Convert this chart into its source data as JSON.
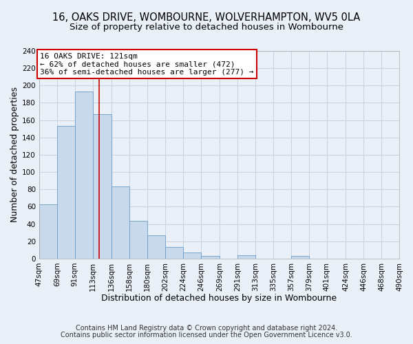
{
  "title": "16, OAKS DRIVE, WOMBOURNE, WOLVERHAMPTON, WV5 0LA",
  "subtitle": "Size of property relative to detached houses in Wombourne",
  "xlabel": "Distribution of detached houses by size in Wombourne",
  "ylabel": "Number of detached properties",
  "footer_line1": "Contains HM Land Registry data © Crown copyright and database right 2024.",
  "footer_line2": "Contains public sector information licensed under the Open Government Licence v3.0.",
  "bin_labels": [
    "47sqm",
    "69sqm",
    "91sqm",
    "113sqm",
    "136sqm",
    "158sqm",
    "180sqm",
    "202sqm",
    "224sqm",
    "246sqm",
    "269sqm",
    "291sqm",
    "313sqm",
    "335sqm",
    "357sqm",
    "379sqm",
    "401sqm",
    "424sqm",
    "446sqm",
    "468sqm",
    "490sqm"
  ],
  "bar_values": [
    63,
    153,
    193,
    167,
    83,
    44,
    27,
    13,
    7,
    3,
    0,
    4,
    0,
    0,
    3,
    0,
    0,
    0,
    0,
    0,
    1
  ],
  "bin_edges": [
    47,
    69,
    91,
    113,
    136,
    158,
    180,
    202,
    224,
    246,
    269,
    291,
    313,
    335,
    357,
    379,
    401,
    424,
    446,
    468,
    490
  ],
  "bar_color": "#c9d9ec",
  "bar_edge_color": "#6b9cc7",
  "grid_color": "#c8d4e3",
  "background_color": "#eaf0f8",
  "plot_bg_color": "#eaf0f8",
  "annotation_text_line1": "16 OAKS DRIVE: 121sqm",
  "annotation_text_line2": "← 62% of detached houses are smaller (472)",
  "annotation_text_line3": "36% of semi-detached houses are larger (277) →",
  "annotation_box_edge": "#cc0000",
  "red_line_x": 121,
  "ylim": [
    0,
    240
  ],
  "yticks": [
    0,
    20,
    40,
    60,
    80,
    100,
    120,
    140,
    160,
    180,
    200,
    220,
    240
  ],
  "title_fontsize": 10.5,
  "subtitle_fontsize": 9.5,
  "axis_label_fontsize": 9,
  "tick_fontsize": 7.5,
  "annotation_fontsize": 8,
  "footer_fontsize": 7
}
